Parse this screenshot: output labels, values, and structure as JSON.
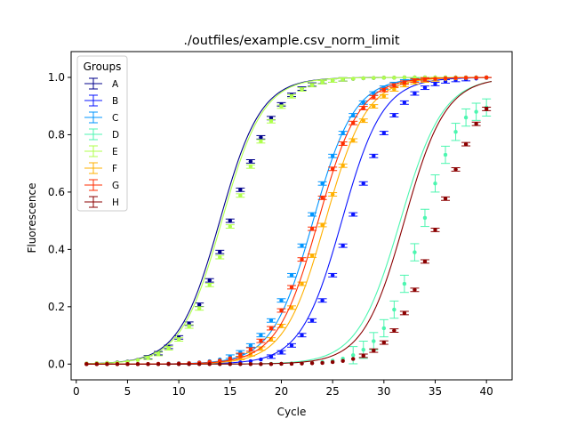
{
  "chart_data": {
    "type": "scatter",
    "title": "./outfiles/example.csv_norm_limit",
    "xlabel": "Cycle",
    "ylabel": "Fluorescence",
    "xlim": [
      -0.5,
      42.5
    ],
    "ylim": [
      -0.055,
      1.09
    ],
    "xticks": [
      0,
      5,
      10,
      15,
      20,
      25,
      30,
      35,
      40
    ],
    "yticks": [
      0.0,
      0.2,
      0.4,
      0.6,
      0.8,
      1.0
    ],
    "xtick_labels": [
      "0",
      "5",
      "10",
      "15",
      "20",
      "25",
      "30",
      "35",
      "40"
    ],
    "ytick_labels": [
      "0.0",
      "0.2",
      "0.4",
      "0.6",
      "0.8",
      "1.0"
    ],
    "grid": false,
    "legend": {
      "title": "Groups",
      "placement": "upper-left"
    },
    "cycles": [
      1,
      2,
      3,
      4,
      5,
      6,
      7,
      8,
      9,
      10,
      11,
      12,
      13,
      14,
      15,
      16,
      17,
      18,
      19,
      20,
      21,
      22,
      23,
      24,
      25,
      26,
      27,
      28,
      29,
      30,
      31,
      32,
      33,
      34,
      35,
      36,
      37,
      38,
      39,
      40
    ],
    "series": [
      {
        "name": "A",
        "color": "#00008b",
        "midpoint": 14.0,
        "slope": 0.5,
        "error": 0.006,
        "values": [
          0.002,
          0.003,
          0.004,
          0.006,
          0.009,
          0.015,
          0.024,
          0.038,
          0.06,
          0.093,
          0.141,
          0.207,
          0.292,
          0.391,
          0.5,
          0.608,
          0.707,
          0.791,
          0.858,
          0.906,
          0.939,
          0.961,
          0.975,
          0.984,
          0.989,
          0.993,
          0.995,
          0.997,
          0.998,
          0.999,
          0.999,
          1.0,
          1.0,
          1.0,
          1.0,
          1.0,
          1.0,
          1.0,
          1.0,
          1.0
        ]
      },
      {
        "name": "B",
        "color": "#0a14ff",
        "midpoint": 25.9,
        "slope": 0.5,
        "error": 0.006,
        "values": [
          0.0,
          0.0,
          0.0,
          0.0,
          0.0,
          0.0,
          0.0,
          0.0,
          0.0,
          0.0,
          0.0,
          0.001,
          0.002,
          0.003,
          0.004,
          0.006,
          0.01,
          0.016,
          0.026,
          0.041,
          0.065,
          0.101,
          0.152,
          0.222,
          0.31,
          0.413,
          0.522,
          0.63,
          0.726,
          0.806,
          0.868,
          0.912,
          0.944,
          0.964,
          0.977,
          0.986,
          0.991,
          0.994,
          0.996,
          0.998
        ]
      },
      {
        "name": "C",
        "color": "#0095ff",
        "midpoint": 23.1,
        "slope": 0.5,
        "error": 0.006,
        "values": [
          0.0,
          0.0,
          0.0,
          0.0,
          0.0,
          0.0,
          0.0,
          0.001,
          0.002,
          0.003,
          0.004,
          0.006,
          0.01,
          0.016,
          0.026,
          0.041,
          0.065,
          0.101,
          0.152,
          0.222,
          0.31,
          0.413,
          0.522,
          0.63,
          0.726,
          0.806,
          0.868,
          0.912,
          0.944,
          0.964,
          0.977,
          0.986,
          0.991,
          0.994,
          0.996,
          0.998,
          0.999,
          0.999,
          1.0,
          1.0
        ]
      },
      {
        "name": "D",
        "color": "#4cf6b0",
        "midpoint": 31.6,
        "slope": 0.48,
        "error": 0.03,
        "values": [
          0.0,
          0.0,
          0.0,
          0.0,
          0.0,
          0.0,
          0.0,
          0.0,
          0.0,
          0.0,
          0.0,
          0.0,
          0.0,
          0.0,
          0.0,
          0.0,
          0.0,
          0.0,
          0.001,
          0.001,
          0.002,
          0.003,
          0.004,
          0.007,
          0.012,
          0.019,
          0.031,
          0.05,
          0.08,
          0.125,
          0.19,
          0.28,
          0.39,
          0.51,
          0.63,
          0.73,
          0.81,
          0.86,
          0.88,
          0.895
        ]
      },
      {
        "name": "E",
        "color": "#b0ff4c",
        "midpoint": 14.2,
        "slope": 0.5,
        "error": 0.006,
        "values": [
          0.002,
          0.003,
          0.004,
          0.005,
          0.008,
          0.014,
          0.022,
          0.035,
          0.055,
          0.086,
          0.131,
          0.194,
          0.276,
          0.373,
          0.48,
          0.588,
          0.689,
          0.777,
          0.847,
          0.898,
          0.934,
          0.958,
          0.973,
          0.983,
          0.989,
          0.993,
          0.995,
          0.997,
          0.998,
          0.999,
          0.999,
          1.0,
          1.0,
          1.0,
          1.0,
          1.0,
          1.0,
          1.0,
          1.0,
          1.0
        ]
      },
      {
        "name": "F",
        "color": "#ffb000",
        "midpoint": 24.3,
        "slope": 0.5,
        "error": 0.006,
        "values": [
          0.0,
          0.0,
          0.0,
          0.0,
          0.0,
          0.0,
          0.0,
          0.0,
          0.001,
          0.001,
          0.002,
          0.003,
          0.005,
          0.008,
          0.013,
          0.021,
          0.034,
          0.054,
          0.086,
          0.133,
          0.197,
          0.28,
          0.378,
          0.485,
          0.592,
          0.692,
          0.78,
          0.849,
          0.899,
          0.934,
          0.958,
          0.973,
          0.983,
          0.989,
          0.993,
          0.995,
          0.997,
          0.998,
          0.999,
          0.999
        ]
      },
      {
        "name": "G",
        "color": "#ff2d00",
        "midpoint": 23.6,
        "slope": 0.5,
        "error": 0.006,
        "values": [
          0.0,
          0.0,
          0.0,
          0.0,
          0.0,
          0.0,
          0.0,
          0.001,
          0.001,
          0.002,
          0.003,
          0.005,
          0.008,
          0.012,
          0.02,
          0.032,
          0.051,
          0.081,
          0.125,
          0.187,
          0.268,
          0.365,
          0.472,
          0.58,
          0.681,
          0.769,
          0.841,
          0.893,
          0.931,
          0.956,
          0.972,
          0.982,
          0.989,
          0.993,
          0.995,
          0.997,
          0.998,
          0.999,
          0.999,
          1.0
        ]
      },
      {
        "name": "H",
        "color": "#8b0000",
        "midpoint": 32.0,
        "slope": 0.5,
        "error": 0.006,
        "values": [
          0.0,
          0.0,
          0.0,
          0.0,
          0.0,
          0.0,
          0.0,
          0.0,
          0.0,
          0.0,
          0.0,
          0.0,
          0.0,
          0.0,
          0.0,
          0.0,
          0.0,
          0.0,
          0.0,
          0.001,
          0.001,
          0.002,
          0.003,
          0.004,
          0.007,
          0.011,
          0.018,
          0.029,
          0.047,
          0.075,
          0.117,
          0.178,
          0.259,
          0.358,
          0.468,
          0.577,
          0.679,
          0.767,
          0.838,
          0.89
        ]
      }
    ]
  }
}
